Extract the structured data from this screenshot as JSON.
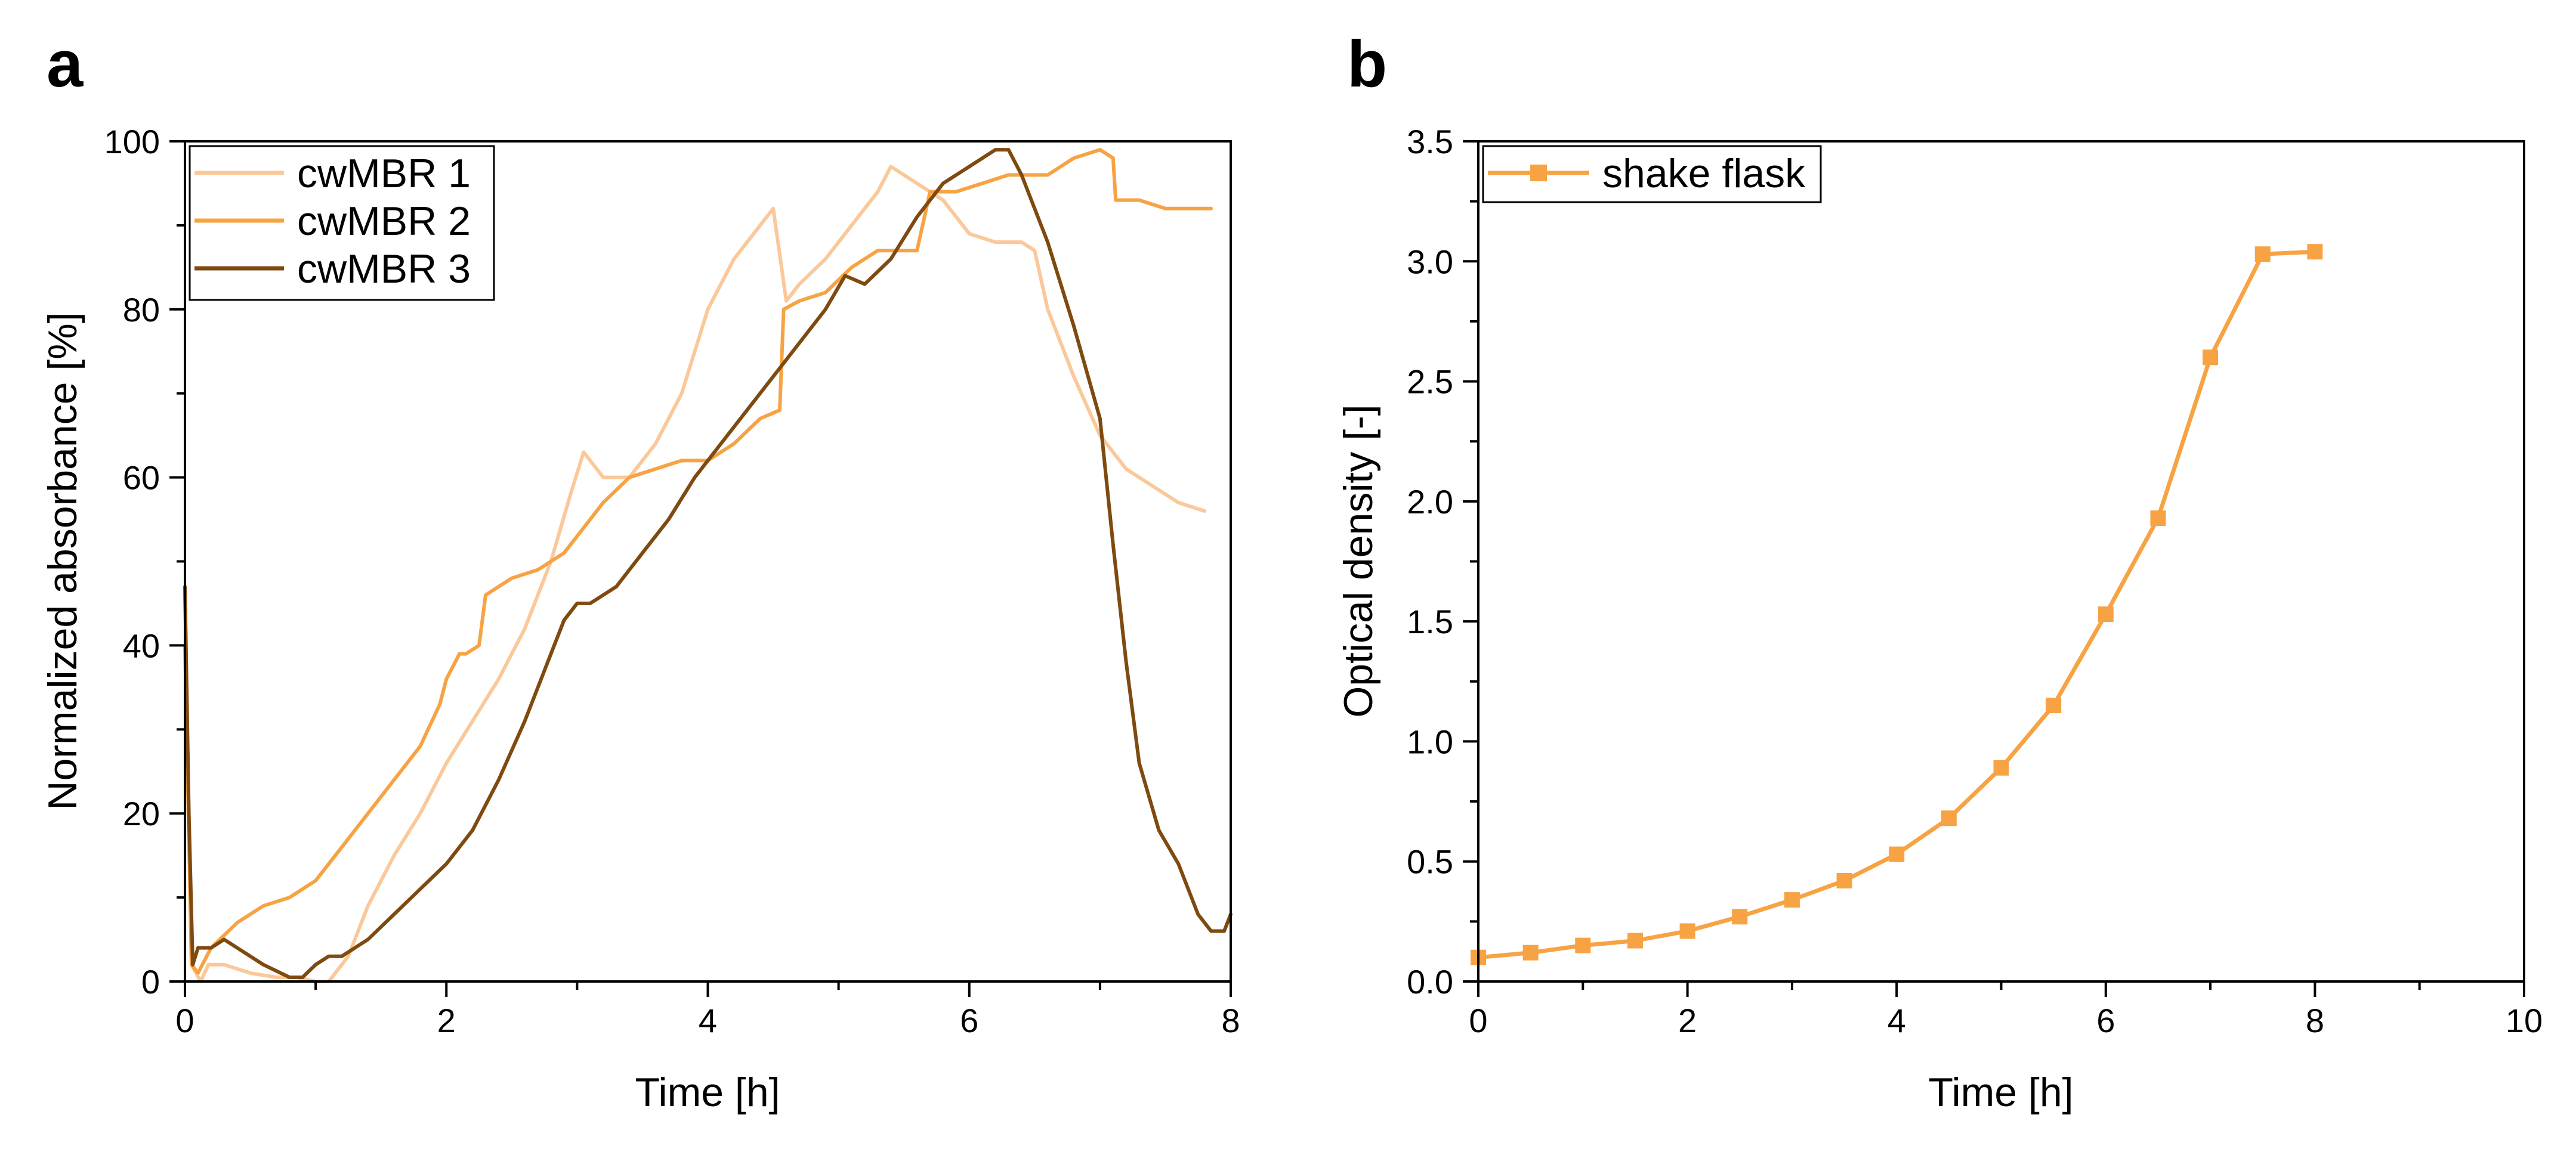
{
  "panels": {
    "a": {
      "letter": "a"
    },
    "b": {
      "letter": "b"
    }
  },
  "chart_data": [
    {
      "type": "line",
      "title": "",
      "xlabel": "Time [h]",
      "ylabel": "Normalized absorbance [%]",
      "xlim": [
        0,
        8
      ],
      "ylim": [
        0,
        100
      ],
      "xticks": [
        0,
        2,
        4,
        6,
        8
      ],
      "yticks": [
        0,
        20,
        40,
        60,
        80,
        100
      ],
      "grid": false,
      "legend_position": "top-left",
      "series": [
        {
          "name": "cwMBR 1",
          "color": "#FBC89A",
          "x": [
            0.0,
            0.05,
            0.12,
            0.18,
            0.3,
            0.5,
            0.7,
            0.85,
            1.0,
            1.1,
            1.25,
            1.4,
            1.6,
            1.8,
            2.0,
            2.2,
            2.4,
            2.6,
            2.8,
            2.95,
            3.05,
            3.2,
            3.4,
            3.6,
            3.8,
            4.0,
            4.2,
            4.35,
            4.5,
            4.6,
            4.7,
            4.9,
            5.1,
            5.3,
            5.4,
            5.5,
            5.6,
            5.8,
            6.0,
            6.2,
            6.4,
            6.5,
            6.6,
            6.8,
            7.0,
            7.2,
            7.4,
            7.6,
            7.8
          ],
          "values": [
            46,
            2,
            0,
            2,
            2,
            1,
            0.5,
            0.5,
            0,
            0,
            3,
            9,
            15,
            20,
            26,
            31,
            36,
            42,
            50,
            58,
            63,
            60,
            60,
            64,
            70,
            80,
            86,
            89,
            92,
            81,
            83,
            86,
            90,
            94,
            97,
            96,
            95,
            93,
            89,
            88,
            88,
            87,
            80,
            72,
            65,
            61,
            59,
            57,
            56
          ]
        },
        {
          "name": "cwMBR 2",
          "color": "#F7A343",
          "x": [
            0.0,
            0.05,
            0.1,
            0.2,
            0.4,
            0.6,
            0.8,
            1.0,
            1.2,
            1.4,
            1.6,
            1.8,
            1.95,
            2.0,
            2.1,
            2.15,
            2.25,
            2.3,
            2.5,
            2.7,
            2.9,
            3.0,
            3.2,
            3.4,
            3.6,
            3.8,
            4.0,
            4.2,
            4.4,
            4.55,
            4.58,
            4.7,
            4.9,
            5.1,
            5.3,
            5.6,
            5.7,
            5.9,
            6.1,
            6.3,
            6.6,
            6.8,
            7.0,
            7.1,
            7.12,
            7.3,
            7.5,
            7.7,
            7.85
          ],
          "values": [
            40,
            2,
            1,
            4,
            7,
            9,
            10,
            12,
            16,
            20,
            24,
            28,
            33,
            36,
            39,
            39,
            40,
            46,
            48,
            49,
            51,
            53,
            57,
            60,
            61,
            62,
            62,
            64,
            67,
            68,
            80,
            81,
            82,
            85,
            87,
            87,
            94,
            94,
            95,
            96,
            96,
            98,
            99,
            98,
            93,
            93,
            92,
            92,
            92
          ]
        },
        {
          "name": "cwMBR 3",
          "color": "#7F4A10",
          "x": [
            0.0,
            0.03,
            0.06,
            0.1,
            0.2,
            0.3,
            0.4,
            0.6,
            0.8,
            0.9,
            1.0,
            1.1,
            1.2,
            1.4,
            1.6,
            1.8,
            2.0,
            2.2,
            2.4,
            2.6,
            2.8,
            2.9,
            3.0,
            3.1,
            3.3,
            3.5,
            3.7,
            3.9,
            4.1,
            4.3,
            4.5,
            4.7,
            4.9,
            5.05,
            5.2,
            5.4,
            5.6,
            5.8,
            6.0,
            6.2,
            6.3,
            6.4,
            6.6,
            6.8,
            7.0,
            7.1,
            7.2,
            7.3,
            7.45,
            7.6,
            7.75,
            7.85,
            7.95,
            8.0
          ],
          "values": [
            47,
            20,
            2,
            4,
            4,
            5,
            4,
            2,
            0.5,
            0.5,
            2,
            3,
            3,
            5,
            8,
            11,
            14,
            18,
            24,
            31,
            39,
            43,
            45,
            45,
            47,
            51,
            55,
            60,
            64,
            68,
            72,
            76,
            80,
            84,
            83,
            86,
            91,
            95,
            97,
            99,
            99,
            96,
            88,
            78,
            67,
            52,
            38,
            26,
            18,
            14,
            8,
            6,
            6,
            8
          ]
        }
      ]
    },
    {
      "type": "line",
      "title": "",
      "xlabel": "Time [h]",
      "ylabel": "Optical density [-]",
      "xlim": [
        0,
        10
      ],
      "ylim": [
        0,
        3.5
      ],
      "xticks": [
        0,
        2,
        4,
        6,
        8,
        10
      ],
      "yticks": [
        0.0,
        0.5,
        1.0,
        1.5,
        2.0,
        2.5,
        3.0,
        3.5
      ],
      "grid": false,
      "legend_position": "top-left",
      "series": [
        {
          "name": "shake flask",
          "color": "#F7A343",
          "marker": "square",
          "x": [
            0,
            0.5,
            1,
            1.5,
            2,
            2.5,
            3,
            3.5,
            4,
            4.5,
            5,
            5.5,
            6,
            6.5,
            7,
            7.5,
            8
          ],
          "values": [
            0.1,
            0.12,
            0.15,
            0.17,
            0.21,
            0.27,
            0.34,
            0.42,
            0.53,
            0.68,
            0.89,
            1.15,
            1.53,
            1.93,
            2.6,
            3.03,
            3.04
          ]
        }
      ]
    }
  ]
}
